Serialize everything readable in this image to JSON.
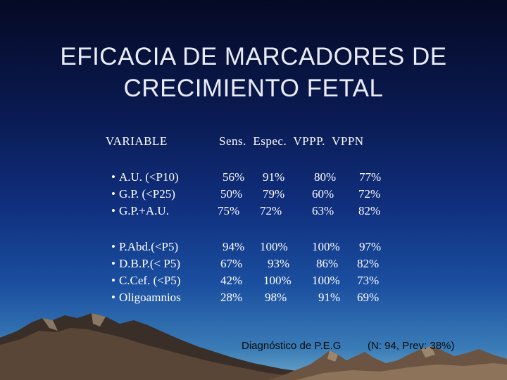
{
  "title": {
    "line1": "EFICACIA DE MARCADORES DE",
    "line2": "CRECIMIENTO FETAL"
  },
  "header": {
    "variable": "VARIABLE",
    "cols": "Sens.  Espec.  VPPP.  VPPN"
  },
  "group1": [
    {
      "name": "A.U. (<P10)",
      "sens": "56%",
      "espec": "91%",
      "vppp": "80%",
      "vppn": "77%"
    },
    {
      "name": "G.P. (<P25)",
      "sens": "50%",
      "espec": "79%",
      "vppp": "60%",
      "vppn": "72%"
    },
    {
      "name": "G.P.+A.U.",
      "sens": "75%",
      "espec": "72%",
      "vppp": "63%",
      "vppn": "82%"
    }
  ],
  "group2": [
    {
      "name": "P.Abd.(<P5)",
      "sens": "94%",
      "espec": "100%",
      "vppp": "100%",
      "vppn": "97%"
    },
    {
      "name": "D.B.P.(< P5)",
      "sens": "67%",
      "espec": "93%",
      "vppp": "86%",
      "vppn": "82%"
    },
    {
      "name": "C.Cef. (<P5)",
      "sens": "42%",
      "espec": "100%",
      "vppp": "100%",
      "vppn": "73%"
    },
    {
      "name": "Oligoamnios",
      "sens": "28%",
      "espec": "98%",
      "vppp": "91%",
      "vppn": "69%"
    }
  ],
  "bullet": "•",
  "footer": {
    "left": "Diagnóstico de P.E.G",
    "right": "(N: 94, Prev: 38%)"
  }
}
